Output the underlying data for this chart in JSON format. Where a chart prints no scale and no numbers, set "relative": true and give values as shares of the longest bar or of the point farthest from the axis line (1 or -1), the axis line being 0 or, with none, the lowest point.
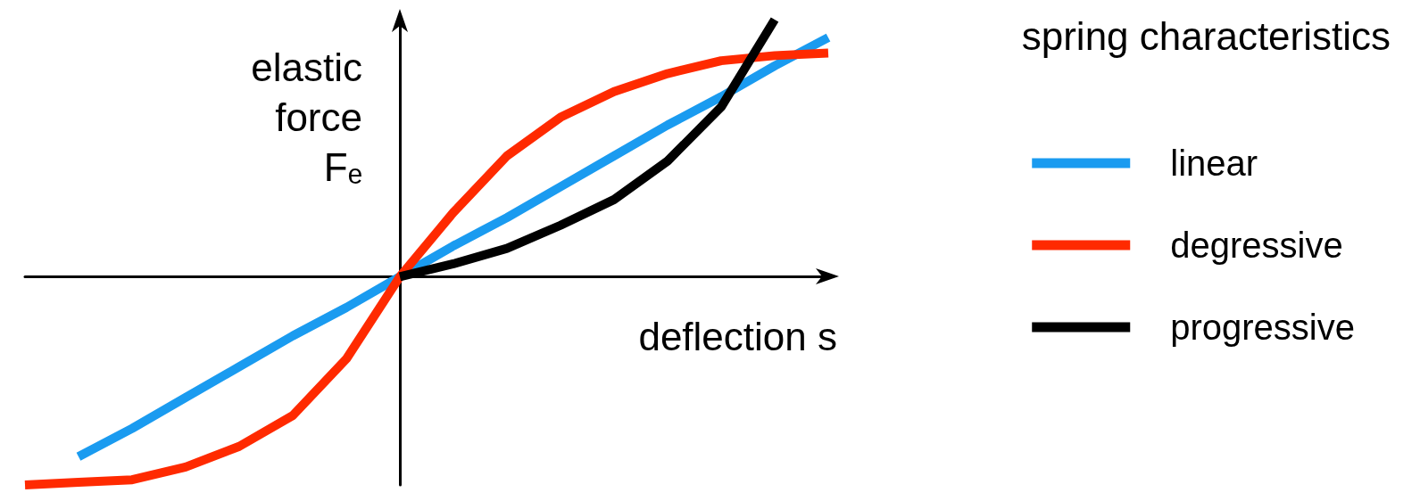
{
  "chart_data": {
    "type": "line",
    "relative": true,
    "xlabel": "deflection s",
    "ylabel": "elastic force Fₑ",
    "legend_title": "spring characteristics",
    "legend": "right",
    "grid": false,
    "marker": "none",
    "line_style": "solid",
    "categories": [
      null,
      null,
      null,
      null,
      null,
      null,
      null,
      null,
      null,
      null,
      null,
      null,
      null,
      null,
      null,
      null
    ],
    "series": [
      {
        "name": "linear",
        "color": "#1a9bf0",
        "values": [
          null,
          -0.7,
          -0.59,
          -0.47,
          -0.35,
          -0.23,
          -0.12,
          0,
          0.12,
          0.23,
          0.35,
          0.47,
          0.59,
          0.7,
          0.82,
          0.93
        ]
      },
      {
        "name": "degressive",
        "color": "#ff2a00",
        "values": [
          -0.81,
          -0.8,
          -0.79,
          -0.74,
          -0.66,
          -0.54,
          -0.32,
          0,
          0.25,
          0.47,
          0.62,
          0.72,
          0.79,
          0.84,
          0.86,
          0.87
        ]
      },
      {
        "name": "progressive",
        "color": "#000000",
        "values": [
          null,
          null,
          null,
          null,
          null,
          null,
          null,
          0,
          0.05,
          0.11,
          0.2,
          0.3,
          0.45,
          0.66,
          1,
          null
        ]
      }
    ]
  }
}
